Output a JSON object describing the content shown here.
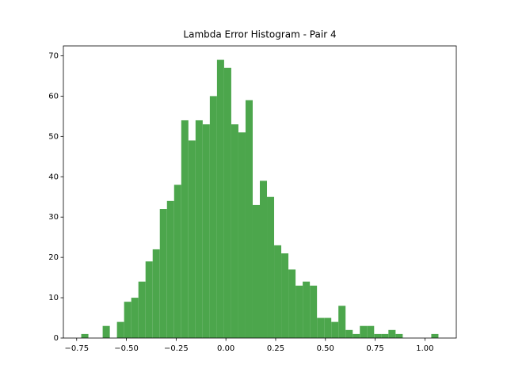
{
  "chart_data": {
    "type": "histogram",
    "title": "Lambda Error Histogram - Pair 4",
    "bins": [
      -0.727,
      -0.6911,
      -0.6552,
      -0.6193,
      -0.5834,
      -0.5475,
      -0.5116,
      -0.4757,
      -0.4398,
      -0.4039,
      -0.368,
      -0.3321,
      -0.2962,
      -0.2603,
      -0.2244,
      -0.1885,
      -0.1526,
      -0.1167,
      -0.0808,
      -0.0449,
      -0.009,
      0.0269,
      0.0628,
      0.0987,
      0.1346,
      0.1705,
      0.2064,
      0.2423,
      0.2782,
      0.3141,
      0.35,
      0.3859,
      0.4218,
      0.4577,
      0.4936,
      0.5295,
      0.5654,
      0.6013,
      0.6372,
      0.6731,
      0.709,
      0.7449,
      0.7808,
      0.8167,
      0.8526,
      0.8885,
      0.9244,
      0.9603,
      0.9962,
      1.0321,
      1.068
    ],
    "values": [
      1,
      0,
      0,
      3,
      0,
      4,
      9,
      10,
      14,
      19,
      22,
      32,
      34,
      38,
      54,
      49,
      54,
      53,
      60,
      69,
      67,
      53,
      51,
      59,
      33,
      39,
      35,
      23,
      21,
      17,
      13,
      14,
      13,
      5,
      5,
      4,
      8,
      2,
      1,
      3,
      3,
      1,
      1,
      2,
      1,
      0,
      0,
      0,
      0,
      1
    ],
    "color": "#4ca64c",
    "xlim": [
      -0.8168,
      1.1578
    ],
    "xticks": [
      {
        "value": -0.75,
        "label": "−0.75"
      },
      {
        "value": -0.5,
        "label": "−0.50"
      },
      {
        "value": -0.25,
        "label": "−0.25"
      },
      {
        "value": 0,
        "label": "0.00"
      },
      {
        "value": 0.25,
        "label": "0.25"
      },
      {
        "value": 0.5,
        "label": "0.50"
      },
      {
        "value": 0.75,
        "label": "0.75"
      },
      {
        "value": 1,
        "label": "1.00"
      }
    ],
    "ylim": [
      0,
      72.45
    ],
    "yticks": [
      0,
      10,
      20,
      30,
      40,
      50,
      60,
      70
    ]
  }
}
